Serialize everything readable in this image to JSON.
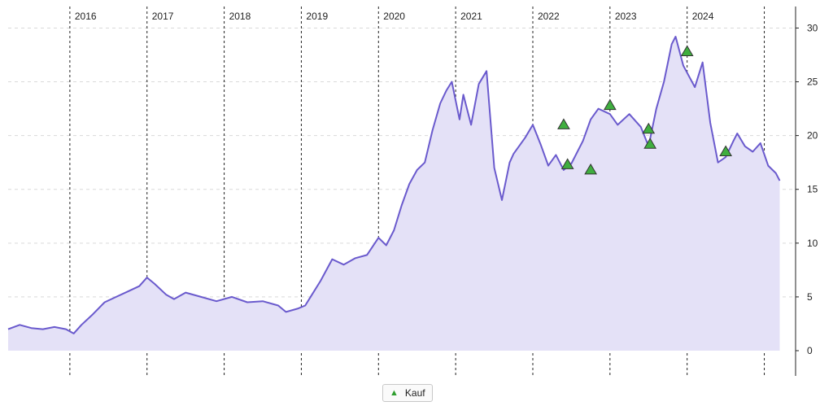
{
  "colors": {
    "line": "#6a5acd",
    "fill": "#e4e1f7",
    "buy_marker": "#3fae3f",
    "grid": "#d9d9d9",
    "year_line": "#222222"
  },
  "legend": {
    "label": "Kauf",
    "icon": "triangle-up-icon"
  },
  "chart_data": {
    "type": "area",
    "title": "",
    "xlabel": "",
    "ylabel": "",
    "ylim": [
      0,
      32
    ],
    "xlim": [
      2015.2,
      2025.3
    ],
    "y_ticks": [
      0,
      5,
      10,
      15,
      20,
      25,
      30
    ],
    "year_markers": [
      "2016",
      "2017",
      "2018",
      "2019",
      "2020",
      "2021",
      "2022",
      "2023",
      "2024"
    ],
    "grid": "horizontal dashed",
    "legend_position": "bottom-center",
    "series": [
      {
        "x": [
          2015.2,
          2015.35,
          2015.5,
          2015.65,
          2015.8,
          2015.95,
          2016.05,
          2016.15,
          2016.3,
          2016.45,
          2016.6,
          2016.75,
          2016.9,
          2017.0,
          2017.1,
          2017.25,
          2017.35,
          2017.5,
          2017.7,
          2017.9,
          2018.1,
          2018.3,
          2018.5,
          2018.7,
          2018.8,
          2018.95,
          2019.05,
          2019.25,
          2019.4,
          2019.55,
          2019.7,
          2019.85,
          2020.0,
          2020.1,
          2020.2,
          2020.3,
          2020.4,
          2020.5,
          2020.6,
          2020.7,
          2020.8,
          2020.88,
          2020.95,
          2021.05,
          2021.1,
          2021.2,
          2021.3,
          2021.4,
          2021.5,
          2021.6,
          2021.7,
          2021.75,
          2021.9,
          2022.0,
          2022.1,
          2022.2,
          2022.3,
          2022.4,
          2022.5,
          2022.65,
          2022.75,
          2022.85,
          2023.0,
          2023.1,
          2023.25,
          2023.4,
          2023.5,
          2023.6,
          2023.7,
          2023.8,
          2023.85,
          2023.95,
          2024.1,
          2024.2,
          2024.3,
          2024.4,
          2024.5,
          2024.6,
          2024.65,
          2024.75,
          2024.85,
          2024.95,
          2025.05,
          2025.15,
          2025.2
        ],
        "y": [
          2.0,
          2.4,
          2.1,
          2.0,
          2.2,
          2.0,
          1.6,
          2.4,
          3.4,
          4.5,
          5.0,
          5.5,
          6.0,
          6.8,
          6.2,
          5.2,
          4.8,
          5.4,
          5.0,
          4.6,
          5.0,
          4.5,
          4.6,
          4.2,
          3.6,
          3.9,
          4.2,
          6.5,
          8.5,
          8.0,
          8.6,
          8.9,
          10.5,
          9.8,
          11.2,
          13.5,
          15.5,
          16.8,
          17.5,
          20.5,
          23.0,
          24.2,
          25.0,
          21.5,
          23.8,
          21.0,
          24.8,
          26.0,
          17.0,
          14.0,
          17.5,
          18.3,
          19.8,
          21.0,
          19.2,
          17.2,
          18.2,
          16.8,
          17.4,
          19.5,
          21.5,
          22.5,
          22.0,
          21.0,
          22.0,
          20.8,
          19.0,
          22.5,
          25.0,
          28.5,
          29.2,
          26.5,
          24.5,
          26.8,
          21.2,
          17.5,
          18.0,
          19.5,
          20.2,
          19.0,
          18.5,
          19.3,
          17.2,
          16.5,
          15.8
        ]
      }
    ],
    "buy_markers": {
      "name": "Kauf",
      "x": [
        2022.4,
        2022.45,
        2022.75,
        2023.0,
        2023.5,
        2023.52,
        2024.0,
        2024.5
      ],
      "y": [
        21.0,
        17.3,
        16.8,
        22.8,
        20.6,
        19.2,
        27.8,
        18.5
      ]
    }
  }
}
